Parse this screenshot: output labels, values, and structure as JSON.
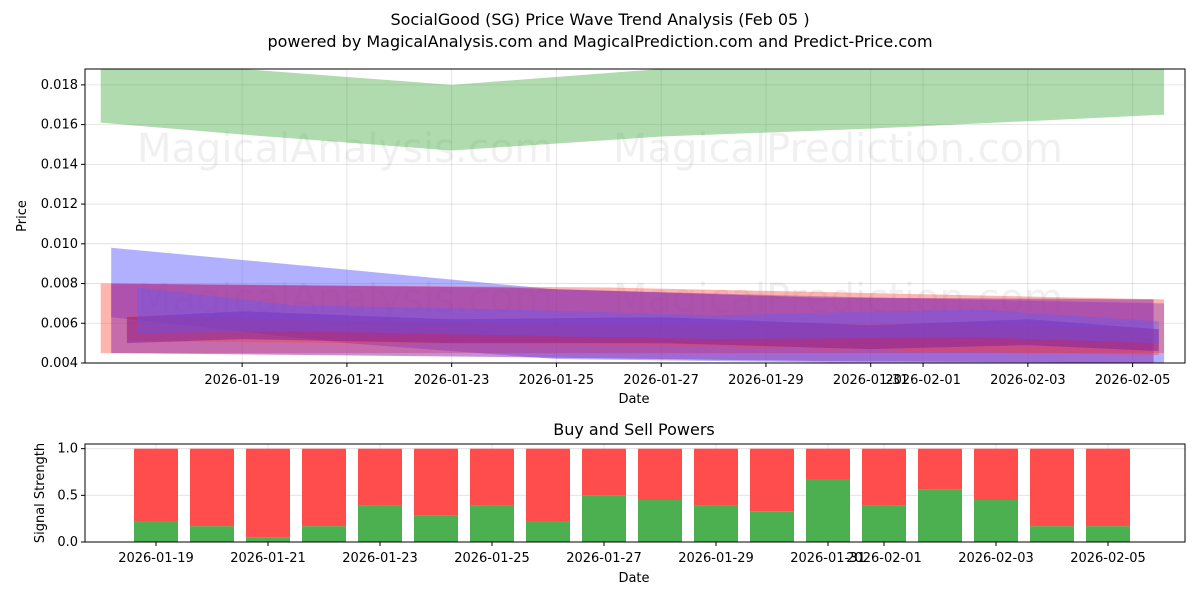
{
  "header": {
    "title": "SocialGood (SG) Price Wave Trend Analysis (Feb 05 )",
    "subtitle": "powered by MagicalAnalysis.com and MagicalPrediction.com and Predict-Price.com"
  },
  "watermarks": [
    "MagicalAnalysis.com",
    "MagicalPrediction.com"
  ],
  "colors": {
    "green_band": "#2ca02c",
    "blue_band": "#4f4fff",
    "red_band": "#ff3b30",
    "purple_band": "#8e24aa",
    "buy": "#4caf50",
    "sell": "#ff4c4c"
  },
  "chart_data": [
    {
      "type": "area",
      "title": "",
      "xlabel": "Date",
      "ylabel": "Price",
      "x_range": [
        "2026-01-16",
        "2026-02-06"
      ],
      "ylim": [
        0.004,
        0.0188
      ],
      "y_ticks": [
        "0.004",
        "0.006",
        "0.008",
        "0.010",
        "0.012",
        "0.014",
        "0.016",
        "0.018"
      ],
      "x_ticks": [
        "2026-01-19",
        "2026-01-21",
        "2026-01-23",
        "2026-01-25",
        "2026-01-27",
        "2026-01-29",
        "2026-01-31",
        "2026-02-01",
        "2026-02-03",
        "2026-02-05"
      ],
      "x_tick_days": [
        3,
        5,
        7,
        9,
        11,
        13,
        15,
        16,
        18,
        20
      ],
      "grid": true,
      "bands": [
        {
          "name": "upper wave band",
          "color": "#2ca02c",
          "opacity": 0.38,
          "points": [
            {
              "day": 0.3,
              "low": 0.0161,
              "high": 0.0188
            },
            {
              "day": 3,
              "low": 0.0155,
              "high": 0.0188
            },
            {
              "day": 7,
              "low": 0.0147,
              "high": 0.018
            },
            {
              "day": 11,
              "low": 0.0154,
              "high": 0.0188
            },
            {
              "day": 15,
              "low": 0.0158,
              "high": 0.0188
            },
            {
              "day": 20.6,
              "low": 0.0165,
              "high": 0.0188
            }
          ]
        },
        {
          "name": "descending wave band",
          "color": "#4f4fff",
          "opacity": 0.45,
          "points": [
            {
              "day": 0.5,
              "low": 0.0063,
              "high": 0.0098
            },
            {
              "day": 5,
              "low": 0.005,
              "high": 0.0087
            },
            {
              "day": 9,
              "low": 0.0042,
              "high": 0.0077
            },
            {
              "day": 15,
              "low": 0.004,
              "high": 0.0073
            },
            {
              "day": 20.6,
              "low": 0.004,
              "high": 0.007
            }
          ]
        },
        {
          "name": "flat red band",
          "color": "#ff3b30",
          "opacity": 0.38,
          "points": [
            {
              "day": 0.3,
              "low": 0.0045,
              "high": 0.008
            },
            {
              "day": 10,
              "low": 0.0045,
              "high": 0.0078
            },
            {
              "day": 20.6,
              "low": 0.0045,
              "high": 0.0072
            }
          ]
        },
        {
          "name": "purple wave band",
          "color": "#8e24aa",
          "opacity": 0.5,
          "points": [
            {
              "day": 0.5,
              "low": 0.0045,
              "high": 0.008
            },
            {
              "day": 8,
              "low": 0.0043,
              "high": 0.0078
            },
            {
              "day": 14,
              "low": 0.0041,
              "high": 0.0073
            },
            {
              "day": 20.4,
              "low": 0.004,
              "high": 0.0072
            }
          ]
        },
        {
          "name": "inner red band",
          "color": "#ff3b30",
          "opacity": 0.35,
          "points": [
            {
              "day": 0.8,
              "low": 0.0051,
              "high": 0.0064
            },
            {
              "day": 5,
              "low": 0.005,
              "high": 0.0061
            },
            {
              "day": 11,
              "low": 0.0049,
              "high": 0.0059
            },
            {
              "day": 16,
              "low": 0.0046,
              "high": 0.006
            },
            {
              "day": 20.5,
              "low": 0.0044,
              "high": 0.0057
            }
          ]
        },
        {
          "name": "inner purple band",
          "color": "#7b1fa2",
          "opacity": 0.5,
          "points": [
            {
              "day": 0.8,
              "low": 0.005,
              "high": 0.0063
            },
            {
              "day": 3,
              "low": 0.0052,
              "high": 0.0066
            },
            {
              "day": 7,
              "low": 0.005,
              "high": 0.0062
            },
            {
              "day": 11,
              "low": 0.005,
              "high": 0.0063
            },
            {
              "day": 15,
              "low": 0.0047,
              "high": 0.0059
            },
            {
              "day": 18,
              "low": 0.0049,
              "high": 0.0062
            },
            {
              "day": 20.5,
              "low": 0.0046,
              "high": 0.0057
            }
          ]
        },
        {
          "name": "blue wave band",
          "color": "#5a5aff",
          "opacity": 0.35,
          "points": [
            {
              "day": 1,
              "low": 0.0055,
              "high": 0.0078
            },
            {
              "day": 4,
              "low": 0.0056,
              "high": 0.0069
            },
            {
              "day": 8,
              "low": 0.0054,
              "high": 0.0067
            },
            {
              "day": 12,
              "low": 0.0052,
              "high": 0.0064
            },
            {
              "day": 17,
              "low": 0.0053,
              "high": 0.0067
            },
            {
              "day": 20.5,
              "low": 0.005,
              "high": 0.0061
            }
          ]
        }
      ]
    },
    {
      "type": "bar",
      "title": "Buy and Sell Powers",
      "xlabel": "Date",
      "ylabel": "Signal Strength",
      "ylim": [
        0,
        1.05
      ],
      "y_ticks": [
        "0.0",
        "0.5",
        "1.0"
      ],
      "x_ticks": [
        "2026-01-19",
        "2026-01-21",
        "2026-01-23",
        "2026-01-25",
        "2026-01-27",
        "2026-01-29",
        "2026-01-31",
        "2026-02-01",
        "2026-02-03",
        "2026-02-05"
      ],
      "x_tick_index": [
        0,
        2,
        4,
        6,
        8,
        10,
        12,
        13,
        15,
        17
      ],
      "categories": [
        "2026-01-19",
        "2026-01-20",
        "2026-01-21",
        "2026-01-22",
        "2026-01-23",
        "2026-01-24",
        "2026-01-25",
        "2026-01-26",
        "2026-01-27",
        "2026-01-28",
        "2026-01-29",
        "2026-01-30",
        "2026-01-31",
        "2026-02-01",
        "2026-02-02",
        "2026-02-03",
        "2026-02-04",
        "2026-02-05"
      ],
      "series": [
        {
          "name": "Buy",
          "color": "#4caf50",
          "values": [
            0.22,
            0.17,
            0.05,
            0.17,
            0.39,
            0.28,
            0.39,
            0.22,
            0.5,
            0.45,
            0.39,
            0.33,
            0.67,
            0.39,
            0.56,
            0.45,
            0.17,
            0.17
          ]
        },
        {
          "name": "Sell",
          "color": "#ff4c4c",
          "values": [
            0.78,
            0.83,
            0.95,
            0.83,
            0.61,
            0.72,
            0.61,
            0.78,
            0.5,
            0.55,
            0.61,
            0.67,
            0.33,
            0.61,
            0.44,
            0.55,
            0.83,
            0.83
          ]
        }
      ],
      "grid": true
    }
  ]
}
